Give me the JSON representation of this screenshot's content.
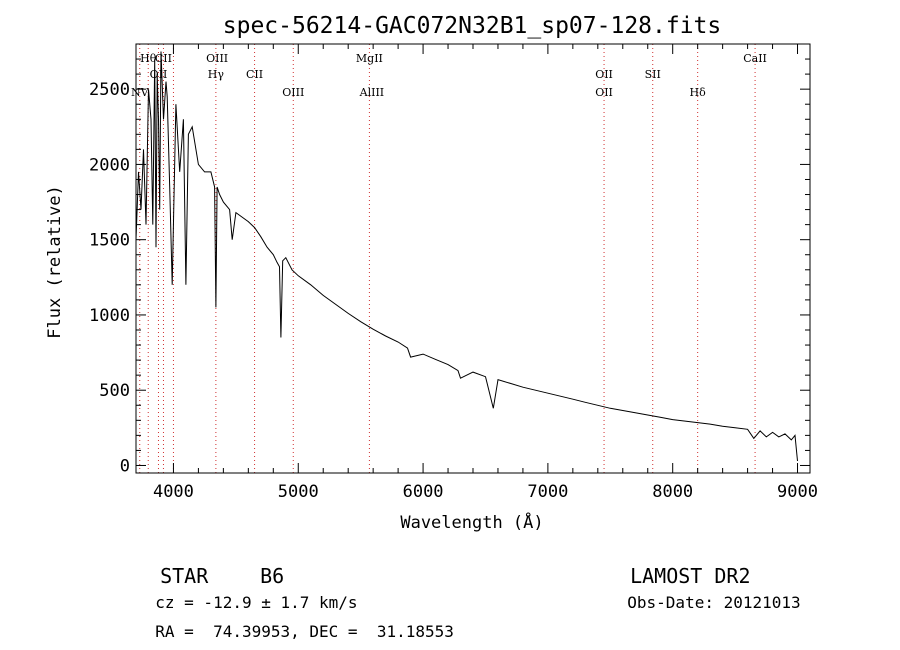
{
  "chart_data": {
    "type": "line",
    "title": "spec-56214-GAC072N32B1_sp07-128.fits",
    "xlabel": "Wavelength (Å)",
    "ylabel": "Flux (relative)",
    "xlim": [
      3700,
      9100
    ],
    "ylim": [
      -50,
      2800
    ],
    "xticks": [
      4000,
      5000,
      6000,
      7000,
      8000,
      9000
    ],
    "yticks": [
      0,
      500,
      1000,
      1500,
      2000,
      2500
    ],
    "grid": false,
    "series": [
      {
        "x": [
          3700,
          3720,
          3740,
          3760,
          3780,
          3800,
          3820,
          3835,
          3850,
          3860,
          3870,
          3880,
          3890,
          3900,
          3920,
          3940,
          3950,
          3970,
          3990,
          4020,
          4050,
          4080,
          4100,
          4120,
          4150,
          4200,
          4250,
          4300,
          4330,
          4340,
          4350,
          4370,
          4400,
          4450,
          4471,
          4500,
          4550,
          4600,
          4650,
          4700,
          4750,
          4800,
          4830,
          4850,
          4861,
          4875,
          4900,
          4950,
          5000,
          5100,
          5200,
          5300,
          5400,
          5500,
          5600,
          5700,
          5800,
          5875,
          5900,
          6000,
          6100,
          6200,
          6280,
          6300,
          6400,
          6500,
          6563,
          6600,
          6700,
          6800,
          6900,
          7000,
          7100,
          7200,
          7300,
          7400,
          7500,
          7600,
          7700,
          7800,
          7900,
          8000,
          8100,
          8200,
          8300,
          8400,
          8500,
          8600,
          8650,
          8700,
          8750,
          8800,
          8850,
          8900,
          8950,
          8980,
          9000
        ],
        "y": [
          1500,
          1950,
          1700,
          2100,
          1600,
          2500,
          2300,
          1600,
          2700,
          1450,
          2600,
          2300,
          1700,
          2750,
          2300,
          2550,
          2450,
          1850,
          1200,
          2400,
          1950,
          2300,
          1200,
          2200,
          2250,
          2000,
          1950,
          1950,
          1850,
          1050,
          1850,
          1800,
          1750,
          1700,
          1500,
          1680,
          1650,
          1620,
          1580,
          1520,
          1450,
          1400,
          1350,
          1320,
          850,
          1360,
          1380,
          1300,
          1260,
          1200,
          1130,
          1070,
          1010,
          955,
          905,
          860,
          820,
          780,
          720,
          740,
          705,
          670,
          630,
          580,
          620,
          590,
          380,
          570,
          545,
          520,
          500,
          480,
          460,
          440,
          420,
          400,
          380,
          365,
          350,
          335,
          320,
          305,
          295,
          285,
          275,
          260,
          250,
          240,
          180,
          230,
          190,
          220,
          190,
          210,
          170,
          200,
          30
        ]
      }
    ],
    "line_markers": [
      {
        "label": "Hθ",
        "x": 3798,
        "row": 1
      },
      {
        "label": "NV",
        "x": 3730,
        "row": 3
      },
      {
        "label": "OII",
        "x": 3880,
        "row": 2
      },
      {
        "label": "CII",
        "x": 3920,
        "row": 1
      },
      {
        "label": "OIII",
        "x": 4350,
        "row": 1
      },
      {
        "label": "Hγ",
        "x": 4340,
        "row": 2
      },
      {
        "label": "CII",
        "x": 4650,
        "row": 2
      },
      {
        "label": "OIII",
        "x": 4960,
        "row": 3
      },
      {
        "label": "MgII",
        "x": 5570,
        "row": 1
      },
      {
        "label": "AlIII",
        "x": 5590,
        "row": 3
      },
      {
        "label": "OII",
        "x": 7450,
        "row": 2
      },
      {
        "label": "OII",
        "x": 7450,
        "row": 3
      },
      {
        "label": "SII",
        "x": 7840,
        "row": 2
      },
      {
        "label": "Hδ",
        "x": 8200,
        "row": 3
      },
      {
        "label": "CaII",
        "x": 8660,
        "row": 1
      }
    ],
    "marker_lines": [
      3730,
      3798,
      3880,
      3920,
      4000,
      4340,
      4650,
      4960,
      5570,
      7450,
      7840,
      8200,
      8660
    ]
  },
  "info": {
    "object_type": "STAR",
    "subclass": "B6",
    "survey": "LAMOST DR2",
    "redshift": "cz = -12.9 ± 1.7 km/s",
    "obs_date": "Obs-Date: 20121013",
    "coords": "RA =  74.39953, DEC =  31.18553"
  }
}
